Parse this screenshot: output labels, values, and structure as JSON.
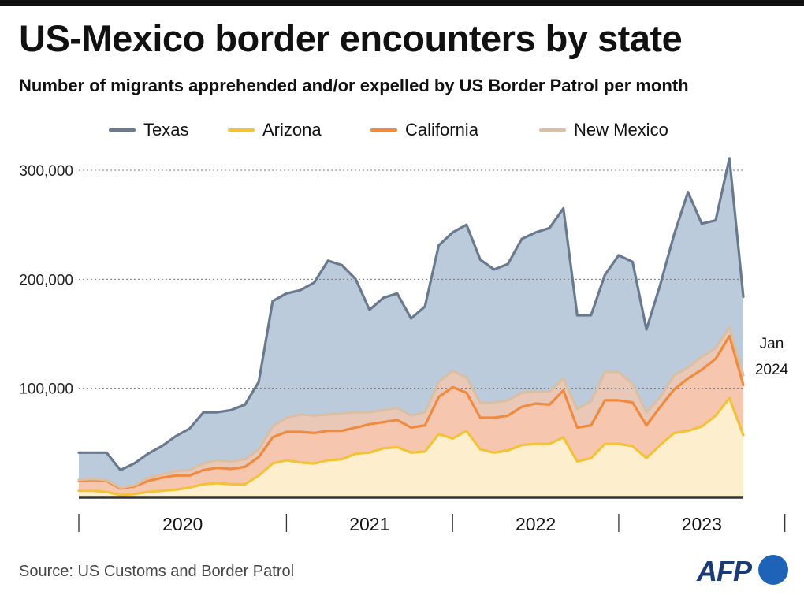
{
  "header": {
    "title": "US-Mexico border encounters by state",
    "subtitle": "Number of migrants apprehended and/or expelled by US Border Patrol per month"
  },
  "source": "Source: US Customs and Border Patrol",
  "logo": "AFP",
  "colors": {
    "texas_line": "#6a7a8e",
    "texas_fill": "#bccbdc",
    "arizona_line": "#f2c23a",
    "arizona_fill": "#fdeecd",
    "california_line": "#f08a3e",
    "california_fill": "#f7c6ae",
    "newmexico_line": "#d9bfa4",
    "newmexico_fill": "#e9c8b8",
    "baseline": "#333333",
    "logo_text": "#1a3a78",
    "logo_dot": "#1f63b8"
  },
  "chart_data": {
    "type": "area",
    "stacked": true,
    "x_start": "2019-10",
    "x_end": "2024-01",
    "ylim": [
      0,
      310000
    ],
    "yticks": [
      100000,
      200000,
      300000
    ],
    "ytick_labels": [
      "100,000",
      "200,000",
      "300,000"
    ],
    "grid": "horizontal dotted",
    "legend_position": "top-center",
    "xtick_labels": [
      "2020",
      "2021",
      "2022",
      "2023"
    ],
    "end_annotation": [
      "Jan",
      "2024"
    ],
    "series": [
      {
        "name": "Arizona",
        "values": [
          6000,
          6000,
          5000,
          2000,
          3000,
          5000,
          6000,
          7000,
          9000,
          12000,
          13000,
          12000,
          12000,
          20000,
          31000,
          34000,
          32000,
          31000,
          34000,
          35000,
          40000,
          41000,
          45000,
          46000,
          41000,
          42000,
          58000,
          54000,
          61000,
          44000,
          41000,
          43000,
          48000,
          49000,
          49000,
          55000,
          33000,
          36000,
          49000,
          49000,
          47000,
          36000,
          48000,
          59000,
          61000,
          65000,
          75000,
          91000,
          57000
        ]
      },
      {
        "name": "California",
        "values": [
          9000,
          10000,
          10000,
          6000,
          7000,
          10000,
          12000,
          13000,
          11000,
          13000,
          14000,
          14000,
          16000,
          17000,
          24000,
          26000,
          28000,
          28000,
          27000,
          26000,
          24000,
          26000,
          24000,
          25000,
          23000,
          24000,
          34000,
          47000,
          35000,
          29000,
          32000,
          32000,
          35000,
          37000,
          36000,
          43000,
          31000,
          30000,
          40000,
          40000,
          40000,
          30000,
          35000,
          40000,
          48000,
          52000,
          52000,
          57000,
          46000
        ]
      },
      {
        "name": "New Mexico",
        "values": [
          1000,
          1000,
          1000,
          1000,
          1000,
          3000,
          3000,
          4000,
          5000,
          6000,
          7000,
          7000,
          7000,
          7000,
          10000,
          13000,
          16000,
          16000,
          15000,
          16000,
          14000,
          11000,
          11000,
          11000,
          11000,
          12000,
          14000,
          15000,
          14000,
          14000,
          14000,
          14000,
          13000,
          11000,
          12000,
          11000,
          17000,
          22000,
          26000,
          26000,
          17000,
          12000,
          9000,
          13000,
          10000,
          12000,
          10000,
          8000,
          9000
        ]
      },
      {
        "name": "Texas",
        "values": [
          25000,
          24000,
          25000,
          16000,
          20000,
          22000,
          26000,
          32000,
          38000,
          47000,
          44000,
          47000,
          50000,
          62000,
          115000,
          114000,
          114000,
          122000,
          141000,
          136000,
          122000,
          94000,
          103000,
          105000,
          89000,
          97000,
          125000,
          127000,
          140000,
          131000,
          122000,
          125000,
          141000,
          146000,
          150000,
          156000,
          86000,
          79000,
          89000,
          107000,
          112000,
          76000,
          103000,
          129000,
          161000,
          122000,
          117000,
          155000,
          72000
        ]
      }
    ]
  }
}
